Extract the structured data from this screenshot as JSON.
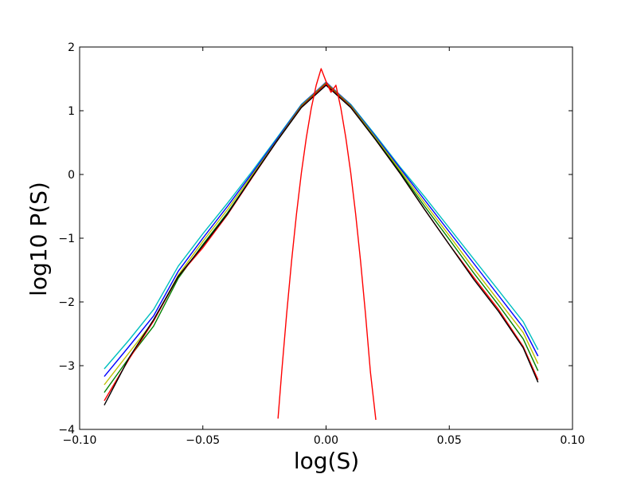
{
  "chart_data": {
    "type": "line",
    "title": "",
    "xlabel": "log(S)",
    "ylabel": "log10 P(S)",
    "xlim": [
      -0.1,
      0.1
    ],
    "ylim": [
      -4,
      2
    ],
    "grid": false,
    "x_ticks": [
      -0.1,
      -0.05,
      0.0,
      0.05,
      0.1
    ],
    "x_tick_labels": [
      "−0.10",
      "−0.05",
      "0.00",
      "0.05",
      "0.10"
    ],
    "y_ticks": [
      -4,
      -3,
      -2,
      -1,
      0,
      1,
      2
    ],
    "y_tick_labels": [
      "−4",
      "−3",
      "−2",
      "−1",
      "0",
      "1",
      "2"
    ],
    "series": [
      {
        "color": "#00bfbf",
        "points": [
          [
            -0.09,
            -3.05
          ],
          [
            -0.08,
            -2.6
          ],
          [
            -0.07,
            -2.12
          ],
          [
            -0.06,
            -1.44
          ],
          [
            -0.05,
            -0.93
          ],
          [
            -0.04,
            -0.45
          ],
          [
            -0.03,
            0.05
          ],
          [
            -0.02,
            0.57
          ],
          [
            -0.01,
            1.1
          ],
          [
            0.0,
            1.44
          ],
          [
            0.01,
            1.1
          ],
          [
            0.02,
            0.62
          ],
          [
            0.03,
            0.12
          ],
          [
            0.04,
            -0.35
          ],
          [
            0.05,
            -0.84
          ],
          [
            0.06,
            -1.33
          ],
          [
            0.07,
            -1.82
          ],
          [
            0.08,
            -2.31
          ],
          [
            0.086,
            -2.75
          ]
        ]
      },
      {
        "color": "#0000ff",
        "points": [
          [
            -0.09,
            -3.17
          ],
          [
            -0.08,
            -2.7
          ],
          [
            -0.07,
            -2.22
          ],
          [
            -0.06,
            -1.52
          ],
          [
            -0.05,
            -1.0
          ],
          [
            -0.04,
            -0.5
          ],
          [
            -0.03,
            0.02
          ],
          [
            -0.02,
            0.55
          ],
          [
            -0.01,
            1.09
          ],
          [
            0.0,
            1.45
          ],
          [
            0.01,
            1.09
          ],
          [
            0.02,
            0.6
          ],
          [
            0.03,
            0.1
          ],
          [
            0.04,
            -0.4
          ],
          [
            0.05,
            -0.9
          ],
          [
            0.06,
            -1.4
          ],
          [
            0.07,
            -1.9
          ],
          [
            0.08,
            -2.4
          ],
          [
            0.086,
            -2.85
          ]
        ]
      },
      {
        "color": "#bfbf00",
        "points": [
          [
            -0.09,
            -3.3
          ],
          [
            -0.08,
            -2.8
          ],
          [
            -0.07,
            -2.3
          ],
          [
            -0.06,
            -1.58
          ],
          [
            -0.05,
            -1.05
          ],
          [
            -0.04,
            -0.55
          ],
          [
            -0.03,
            -0.01
          ],
          [
            -0.02,
            0.53
          ],
          [
            -0.01,
            1.08
          ],
          [
            0.0,
            1.44
          ],
          [
            0.01,
            1.08
          ],
          [
            0.02,
            0.58
          ],
          [
            0.03,
            0.07
          ],
          [
            0.04,
            -0.45
          ],
          [
            0.05,
            -0.96
          ],
          [
            0.06,
            -1.48
          ],
          [
            0.07,
            -1.98
          ],
          [
            0.08,
            -2.48
          ],
          [
            0.086,
            -2.97
          ]
        ]
      },
      {
        "color": "#008000",
        "points": [
          [
            -0.09,
            -3.42
          ],
          [
            -0.08,
            -2.88
          ],
          [
            -0.07,
            -2.38
          ],
          [
            -0.06,
            -1.63
          ],
          [
            -0.05,
            -1.1
          ],
          [
            -0.04,
            -0.6
          ],
          [
            -0.03,
            -0.04
          ],
          [
            -0.02,
            0.52
          ],
          [
            -0.01,
            1.07
          ],
          [
            0.0,
            1.43
          ],
          [
            0.01,
            1.07
          ],
          [
            0.02,
            0.56
          ],
          [
            0.03,
            0.04
          ],
          [
            0.04,
            -0.5
          ],
          [
            0.05,
            -1.02
          ],
          [
            0.06,
            -1.55
          ],
          [
            0.07,
            -2.05
          ],
          [
            0.08,
            -2.58
          ],
          [
            0.086,
            -3.08
          ]
        ]
      },
      {
        "color": "#ff0000",
        "points": [
          [
            -0.09,
            -3.55
          ],
          [
            -0.08,
            -2.9
          ],
          [
            -0.07,
            -2.3
          ],
          [
            -0.06,
            -1.6
          ],
          [
            -0.05,
            -1.15
          ],
          [
            -0.04,
            -0.63
          ],
          [
            -0.03,
            -0.05
          ],
          [
            -0.02,
            0.52
          ],
          [
            -0.01,
            1.06
          ],
          [
            0.0,
            1.42
          ],
          [
            0.01,
            1.06
          ],
          [
            0.02,
            0.55
          ],
          [
            0.03,
            0.02
          ],
          [
            0.04,
            -0.55
          ],
          [
            0.05,
            -1.1
          ],
          [
            0.06,
            -1.62
          ],
          [
            0.07,
            -2.12
          ],
          [
            0.08,
            -2.7
          ],
          [
            0.086,
            -3.22
          ]
        ]
      },
      {
        "color": "#000000",
        "points": [
          [
            -0.09,
            -3.62
          ],
          [
            -0.08,
            -2.88
          ],
          [
            -0.07,
            -2.28
          ],
          [
            -0.06,
            -1.6
          ],
          [
            -0.05,
            -1.12
          ],
          [
            -0.04,
            -0.62
          ],
          [
            -0.03,
            -0.04
          ],
          [
            -0.02,
            0.52
          ],
          [
            -0.01,
            1.05
          ],
          [
            0.0,
            1.4
          ],
          [
            0.01,
            1.05
          ],
          [
            0.02,
            0.55
          ],
          [
            0.03,
            0.02
          ],
          [
            0.04,
            -0.55
          ],
          [
            0.05,
            -1.1
          ],
          [
            0.06,
            -1.65
          ],
          [
            0.07,
            -2.15
          ],
          [
            0.08,
            -2.72
          ],
          [
            0.086,
            -3.26
          ]
        ]
      },
      {
        "color": "#ff0000",
        "points": [
          [
            -0.0195,
            -3.83
          ],
          [
            -0.018,
            -3.1
          ],
          [
            -0.016,
            -2.19
          ],
          [
            -0.014,
            -1.36
          ],
          [
            -0.012,
            -0.62
          ],
          [
            -0.01,
            0.03
          ],
          [
            -0.008,
            0.58
          ],
          [
            -0.006,
            1.04
          ],
          [
            -0.004,
            1.4
          ],
          [
            -0.002,
            1.66
          ],
          [
            0.0,
            1.46
          ],
          [
            0.002,
            1.29
          ],
          [
            0.004,
            1.4
          ],
          [
            0.006,
            1.04
          ],
          [
            0.008,
            0.58
          ],
          [
            0.01,
            0.03
          ],
          [
            0.012,
            -0.62
          ],
          [
            0.014,
            -1.36
          ],
          [
            0.016,
            -2.19
          ],
          [
            0.018,
            -3.1
          ],
          [
            0.0202,
            -3.85
          ]
        ]
      }
    ]
  }
}
